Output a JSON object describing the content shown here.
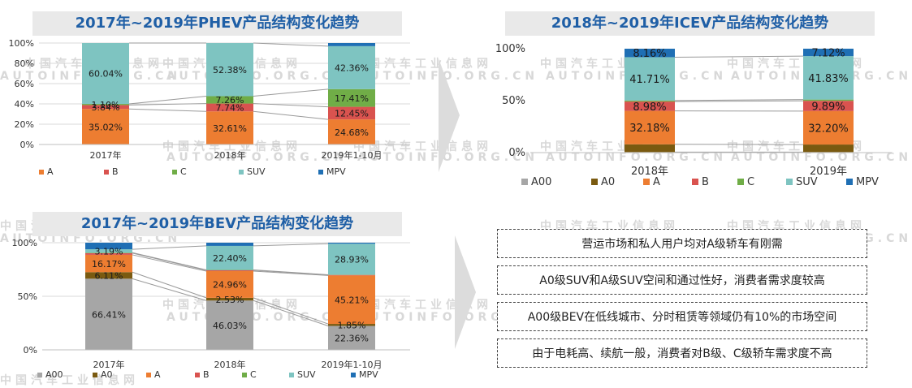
{
  "titles": {
    "phev": "2017年~2019年PHEV产品结构变化趋势",
    "icev": "2018年~2019年ICEV产品结构变化趋势",
    "bev": "2017年~2019年BEV产品结构变化趋势"
  },
  "watermark": {
    "cn": "中国汽车工业信息网",
    "en": "AUTOINFO.ORG.CN"
  },
  "colors": {
    "A00": "#a6a6a6",
    "A0": "#7a5a10",
    "A": "#ed7d31",
    "B": "#d9534f",
    "C": "#70ad47",
    "SUV": "#7ec4c1",
    "MPV": "#1f6fb4",
    "title_text": "#1f5fa6",
    "title_bg": "#e9e9e9"
  },
  "notes": [
    "营运市场和私人用户均对A级轿车有刚需",
    "A0级SUV和A级SUV空间和通过性好，消费者需求度较高",
    "A00级BEV在低线城市、分时租赁等领域仍有10%的市场空间",
    "由于电耗高、续航一般，消费者对B级、C级轿车需求度不高"
  ],
  "chart_data": [
    {
      "id": "phev",
      "type": "bar",
      "stacked": true,
      "title": "2017年~2019年PHEV产品结构变化趋势",
      "categories": [
        "2017年",
        "2018年",
        "2019年1-10月"
      ],
      "series": [
        {
          "name": "A",
          "values": [
            35.02,
            32.61,
            24.68
          ]
        },
        {
          "name": "B",
          "values": [
            3.84,
            7.74,
            12.45
          ]
        },
        {
          "name": "C",
          "values": [
            1.1,
            7.26,
            17.41
          ]
        },
        {
          "name": "SUV",
          "values": [
            60.04,
            52.38,
            42.36
          ]
        },
        {
          "name": "MPV",
          "values": [
            0,
            0,
            3.1
          ]
        }
      ],
      "labels": [
        [
          "35.02%",
          "32.61%",
          "24.68%"
        ],
        [
          "3.84%",
          "7.74%",
          "12.45%"
        ],
        [
          "1.10%",
          "7.26%",
          "17.41%"
        ],
        [
          "60.04%",
          "52.38%",
          "42.36%"
        ],
        [
          "",
          "",
          ""
        ]
      ],
      "yticks": [
        "0%",
        "20%",
        "40%",
        "60%",
        "80%",
        "100%"
      ],
      "ylim": [
        0,
        100
      ],
      "grid": true,
      "legend": "bottom"
    },
    {
      "id": "icev",
      "type": "bar",
      "stacked": true,
      "title": "2018年~2019年ICEV产品结构变化趋势",
      "categories": [
        "2018年",
        "2019年"
      ],
      "series": [
        {
          "name": "A00",
          "values": [
            0.5,
            0.5
          ]
        },
        {
          "name": "A0",
          "values": [
            7.47,
            7.26
          ]
        },
        {
          "name": "A",
          "values": [
            32.18,
            32.2
          ]
        },
        {
          "name": "B",
          "values": [
            8.98,
            9.89
          ]
        },
        {
          "name": "C",
          "values": [
            1.0,
            1.22
          ]
        },
        {
          "name": "SUV",
          "values": [
            41.71,
            41.83
          ]
        },
        {
          "name": "MPV",
          "values": [
            8.16,
            7.12
          ]
        }
      ],
      "labels": [
        [
          "",
          ""
        ],
        [
          "",
          ""
        ],
        [
          "32.18%",
          "32.20%"
        ],
        [
          "8.98%",
          "9.89%"
        ],
        [
          "",
          ""
        ],
        [
          "41.71%",
          "41.83%"
        ],
        [
          "8.16%",
          "7.12%"
        ]
      ],
      "yticks": [
        "0%",
        "50%",
        "100%"
      ],
      "ylim": [
        0,
        100
      ],
      "grid": false,
      "legend": "bottom"
    },
    {
      "id": "bev",
      "type": "bar",
      "stacked": true,
      "title": "2017年~2019年BEV产品结构变化趋势",
      "categories": [
        "2017年",
        "2018年",
        "2019年1-10月"
      ],
      "series": [
        {
          "name": "A00",
          "values": [
            66.41,
            46.03,
            22.36
          ]
        },
        {
          "name": "A0",
          "values": [
            6.11,
            2.53,
            1.85
          ]
        },
        {
          "name": "A",
          "values": [
            16.17,
            24.96,
            45.21
          ]
        },
        {
          "name": "B",
          "values": [
            1.5,
            0.8,
            0.5
          ]
        },
        {
          "name": "C",
          "values": [
            0.5,
            0.3,
            0.2
          ]
        },
        {
          "name": "SUV",
          "values": [
            3.19,
            22.4,
            28.93
          ]
        },
        {
          "name": "MPV",
          "values": [
            6.12,
            2.98,
            0.95
          ]
        }
      ],
      "labels": [
        [
          "66.41%",
          "46.03%",
          "22.36%"
        ],
        [
          "6.11%",
          "2.53%",
          "1.85%"
        ],
        [
          "16.17%",
          "24.96%",
          "45.21%"
        ],
        [
          "",
          "",
          ""
        ],
        [
          "",
          "",
          ""
        ],
        [
          "3.19%",
          "22.40%",
          "28.93%"
        ],
        [
          "",
          "",
          ""
        ]
      ],
      "yticks": [
        "0%",
        "50%",
        "100%"
      ],
      "ylim": [
        0,
        100
      ],
      "grid": true,
      "legend": "bottom"
    }
  ]
}
